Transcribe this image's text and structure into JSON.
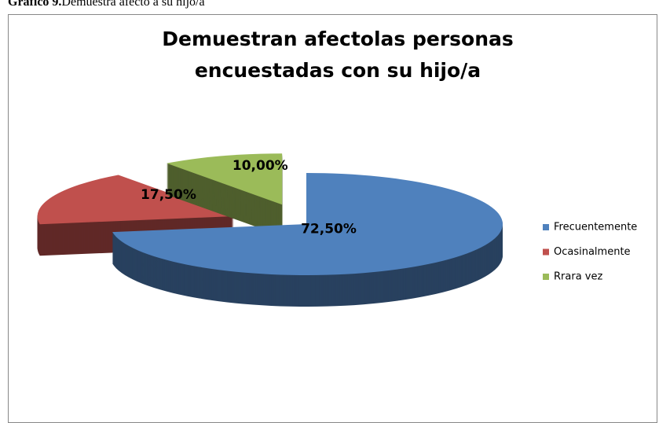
{
  "caption": {
    "label": "Gráfico 9.",
    "text": "Demuestra afecto a su hijo/a"
  },
  "chart_data": {
    "type": "pie3d",
    "title": "Demuestran afectolas personas encuestadas con su hijo/a",
    "categories": [
      "Frecuentemente",
      "Ocasinalmente",
      "Rrara vez"
    ],
    "values": [
      72.5,
      17.5,
      10
    ],
    "value_labels": [
      "72,50%",
      "17,50%",
      "10,00%"
    ],
    "colors": [
      "#4f81bd",
      "#c0504d",
      "#9bbb59"
    ],
    "legend": "right"
  }
}
